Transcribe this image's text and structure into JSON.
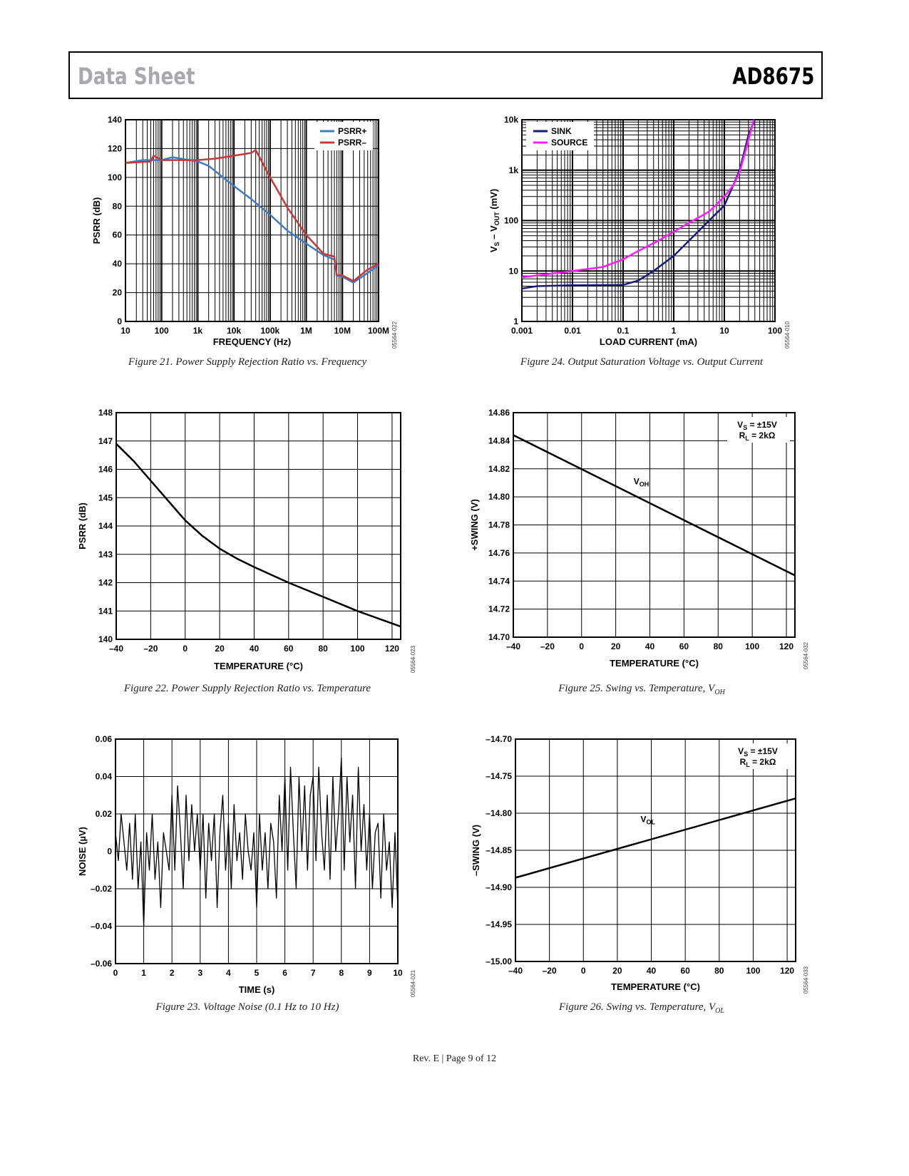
{
  "header": {
    "left": "Data Sheet",
    "right": "AD8675"
  },
  "footer": "Rev. E | Page 9 of 12",
  "captions": [
    {
      "text": "Figure 21. Power Supply Rejection Ratio vs. Frequency",
      "sub": ""
    },
    {
      "text": "Figure 24. Output Saturation Voltage vs. Output Current",
      "sub": ""
    },
    {
      "text": "Figure 22. Power Supply Rejection Ratio vs. Temperature",
      "sub": ""
    },
    {
      "text": "Figure 25. Swing vs. Temperature, V",
      "sub": "OH"
    },
    {
      "text": "Figure 23. Voltage Noise (0.1 Hz to 10 Hz)",
      "sub": ""
    },
    {
      "text": "Figure 26. Swing vs. Temperature, V",
      "sub": "OL"
    }
  ],
  "chart_data": [
    {
      "type": "line",
      "title": "Figure 21. Power Supply Rejection Ratio vs. Frequency",
      "xlabel": "FREQUENCY (Hz)",
      "ylabel": [
        {
          "t": "PSRR (dB)"
        }
      ],
      "code": "05564-022",
      "xscale": "log",
      "yscale": "linear",
      "xlim": [
        10,
        100000000
      ],
      "ylim": [
        0,
        140
      ],
      "grid": true,
      "xticks": [
        10,
        100,
        1000,
        10000,
        100000,
        1000000,
        10000000,
        100000000
      ],
      "xticklabels": [
        "10",
        "100",
        "1k",
        "10k",
        "100k",
        "1M",
        "10M",
        "100M"
      ],
      "yticks": [
        0,
        20,
        40,
        60,
        80,
        100,
        120,
        140
      ],
      "yticklabels": [
        "0",
        "20",
        "40",
        "60",
        "80",
        "100",
        "120",
        "140"
      ],
      "legend": "top-right",
      "series": [
        {
          "name": "PSRR+",
          "color": "#3e7cc4",
          "x": [
            10,
            30,
            100,
            200,
            1000,
            2000,
            5000,
            10000,
            30000,
            100000,
            300000,
            1000000,
            3000000,
            6000000,
            7000000,
            10000000,
            20000000,
            40000000,
            100000000
          ],
          "y": [
            110,
            112,
            112,
            114,
            111,
            108,
            100,
            94,
            85,
            74,
            63,
            54,
            46,
            43,
            32,
            31,
            27,
            32,
            39
          ]
        },
        {
          "name": "PSRR–",
          "color": "#c8373a",
          "x": [
            10,
            50,
            60,
            100,
            1000,
            3000,
            10000,
            30000,
            40000,
            100000,
            300000,
            1000000,
            3000000,
            6000000,
            7000000,
            10000000,
            20000000,
            50000000,
            100000000
          ],
          "y": [
            110,
            111,
            115,
            112,
            112,
            113,
            115,
            117,
            119,
            100,
            79,
            60,
            47,
            45,
            32,
            32,
            28,
            36,
            40
          ]
        }
      ]
    },
    {
      "type": "line",
      "title": "Figure 24. Output Saturation Voltage vs. Output Current",
      "xlabel": "LOAD CURRENT (mA)",
      "ylabel": [
        {
          "t": "V"
        },
        {
          "t": "S",
          "sub": true
        },
        {
          "t": " – V"
        },
        {
          "t": "OUT",
          "sub": true
        },
        {
          "t": " (mV)"
        }
      ],
      "code": "05564-010",
      "xscale": "log",
      "yscale": "log",
      "xlim": [
        0.001,
        100
      ],
      "ylim": [
        1,
        10000
      ],
      "grid": true,
      "xticks": [
        0.001,
        0.01,
        0.1,
        1,
        10,
        100
      ],
      "xticklabels": [
        "0.001",
        "0.01",
        "0.1",
        "1",
        "10",
        "100"
      ],
      "yticks": [
        1,
        10,
        100,
        1000,
        10000
      ],
      "yticklabels": [
        "1",
        "10",
        "100",
        "1k",
        "10k"
      ],
      "legend": "top-left",
      "series": [
        {
          "name": "SINK",
          "color": "#1a1a7a",
          "x": [
            0.001,
            0.002,
            0.01,
            0.1,
            0.2,
            0.4,
            1,
            2,
            5,
            10,
            15,
            20,
            30,
            40
          ],
          "y": [
            4.5,
            5,
            5.2,
            5.3,
            6.5,
            10,
            20,
            40,
            100,
            200,
            500,
            1000,
            5000,
            10000
          ]
        },
        {
          "name": "SOURCE",
          "color": "#ff1aff",
          "x": [
            0.001,
            0.01,
            0.04,
            0.1,
            0.2,
            0.5,
            1,
            2,
            5,
            10,
            15,
            20,
            30,
            38
          ],
          "y": [
            7.5,
            10,
            12,
            17,
            25,
            40,
            60,
            90,
            150,
            300,
            500,
            900,
            4000,
            10000
          ]
        }
      ]
    },
    {
      "type": "line",
      "title": "Figure 22. Power Supply Rejection Ratio vs. Temperature",
      "xlabel": "TEMPERATURE (°C)",
      "ylabel": [
        {
          "t": "PSRR (dB)"
        }
      ],
      "code": "05564-023",
      "xscale": "linear",
      "yscale": "linear",
      "xlim": [
        -40,
        125
      ],
      "ylim": [
        140,
        148
      ],
      "grid": true,
      "xticks": [
        -40,
        -20,
        0,
        20,
        40,
        60,
        80,
        100,
        120
      ],
      "xticklabels": [
        "–40",
        "–20",
        "0",
        "20",
        "40",
        "60",
        "80",
        "100",
        "120"
      ],
      "yticks": [
        140,
        141,
        142,
        143,
        144,
        145,
        146,
        147,
        148
      ],
      "yticklabels": [
        "140",
        "141",
        "142",
        "143",
        "144",
        "145",
        "146",
        "147",
        "148"
      ],
      "series": [
        {
          "name": "PSRR",
          "color": "#000000",
          "x": [
            -40,
            -30,
            -20,
            -10,
            0,
            10,
            20,
            30,
            40,
            60,
            80,
            100,
            125
          ],
          "y": [
            146.9,
            146.3,
            145.6,
            144.9,
            144.2,
            143.65,
            143.2,
            142.85,
            142.55,
            142.0,
            141.5,
            141.0,
            140.45
          ]
        }
      ]
    },
    {
      "type": "line",
      "title": "Figure 25. Swing vs. Temperature, VOH",
      "xlabel": "TEMPERATURE (°C)",
      "ylabel": [
        {
          "t": "+SWING (V)"
        }
      ],
      "code": "05564-032",
      "xscale": "linear",
      "yscale": "linear",
      "xlim": [
        -40,
        125
      ],
      "ylim": [
        14.7,
        14.86
      ],
      "grid": true,
      "xticks": [
        -40,
        -20,
        0,
        20,
        40,
        60,
        80,
        100,
        120
      ],
      "xticklabels": [
        "–40",
        "–20",
        "0",
        "20",
        "40",
        "60",
        "80",
        "100",
        "120"
      ],
      "yticks": [
        14.7,
        14.72,
        14.74,
        14.76,
        14.78,
        14.8,
        14.82,
        14.84,
        14.86
      ],
      "yticklabels": [
        "14.70",
        "14.72",
        "14.74",
        "14.76",
        "14.78",
        "14.80",
        "14.82",
        "14.84",
        "14.86"
      ],
      "annotation": [
        {
          "main": "V",
          "sub": "S",
          "rest": " = ±15V"
        },
        {
          "main": "R",
          "sub": "L",
          "rest": " = 2kΩ"
        }
      ],
      "curve_label": {
        "main": "V",
        "sub": "OH",
        "x": 35,
        "y": 14.809
      },
      "series": [
        {
          "name": "VOH",
          "color": "#000000",
          "x": [
            -40,
            125
          ],
          "y": [
            14.844,
            14.744
          ]
        }
      ]
    },
    {
      "type": "line",
      "title": "Figure 23. Voltage Noise (0.1 Hz to 10 Hz)",
      "xlabel": "TIME (s)",
      "ylabel": [
        {
          "t": "NOISE (µV)"
        }
      ],
      "code": "05564-021",
      "xscale": "linear",
      "yscale": "linear",
      "xlim": [
        0,
        10
      ],
      "ylim": [
        -0.06,
        0.06
      ],
      "grid": true,
      "xticks": [
        0,
        1,
        2,
        3,
        4,
        5,
        6,
        7,
        8,
        9,
        10
      ],
      "xticklabels": [
        "0",
        "1",
        "2",
        "3",
        "4",
        "5",
        "6",
        "7",
        "8",
        "9",
        "10"
      ],
      "yticks": [
        -0.06,
        -0.04,
        -0.02,
        0,
        0.02,
        0.04,
        0.06
      ],
      "yticklabels": [
        "–0.06",
        "–0.04",
        "–0.02",
        "0",
        "0.02",
        "0.04",
        "0.06"
      ],
      "series": [
        {
          "name": "Noise",
          "color": "#000000",
          "x_step": 0.1,
          "y": [
            0.01,
            -0.005,
            0.02,
            0.005,
            -0.01,
            0.015,
            -0.015,
            0.02,
            -0.02,
            0.005,
            -0.04,
            0.01,
            -0.01,
            0.02,
            -0.015,
            0.005,
            -0.03,
            0.01,
            0.0,
            -0.01,
            0.03,
            -0.01,
            0.035,
            0.01,
            -0.02,
            0.03,
            -0.005,
            0.025,
            0.0,
            0.02,
            -0.01,
            0.02,
            -0.025,
            0.015,
            -0.005,
            0.02,
            -0.03,
            0.01,
            0.03,
            -0.01,
            0.015,
            -0.02,
            0.025,
            -0.005,
            0.01,
            -0.015,
            0.02,
            0.0,
            -0.01,
            0.01,
            -0.03,
            0.02,
            -0.01,
            0.01,
            -0.02,
            0.015,
            0.005,
            -0.025,
            0.03,
            0.0,
            0.04,
            -0.01,
            0.045,
            0.01,
            -0.02,
            0.04,
            0.0,
            0.035,
            -0.01,
            0.03,
            0.04,
            -0.005,
            0.045,
            0.01,
            -0.01,
            0.03,
            -0.015,
            0.04,
            0.0,
            0.02,
            0.05,
            -0.01,
            0.04,
            0.005,
            0.03,
            -0.02,
            0.045,
            0.0,
            0.025,
            -0.01,
            0.02,
            -0.02,
            0.01,
            0.015,
            -0.025,
            0.02,
            -0.01,
            0.005,
            -0.03,
            0.01,
            -0.03
          ]
        }
      ]
    },
    {
      "type": "line",
      "title": "Figure 26. Swing vs. Temperature, VOL",
      "xlabel": "TEMPERATURE (°C)",
      "ylabel": [
        {
          "t": "–SWING (V)"
        }
      ],
      "code": "05564-033",
      "xscale": "linear",
      "yscale": "linear",
      "xlim": [
        -40,
        125
      ],
      "ylim": [
        -15.0,
        -14.7
      ],
      "grid": true,
      "xticks": [
        -40,
        -20,
        0,
        20,
        40,
        60,
        80,
        100,
        120
      ],
      "xticklabels": [
        "–40",
        "–20",
        "0",
        "20",
        "40",
        "60",
        "80",
        "100",
        "120"
      ],
      "yticks": [
        -15.0,
        -14.95,
        -14.9,
        -14.85,
        -14.8,
        -14.75,
        -14.7
      ],
      "yticklabels": [
        "–15.00",
        "–14.95",
        "–14.90",
        "–14.85",
        "–14.80",
        "–14.75",
        "–14.70"
      ],
      "annotation": [
        {
          "main": "V",
          "sub": "S",
          "rest": " = ±15V"
        },
        {
          "main": "R",
          "sub": "L",
          "rest": " = 2kΩ"
        }
      ],
      "curve_label": {
        "main": "V",
        "sub": "OL",
        "x": 38,
        "y": -14.812
      },
      "series": [
        {
          "name": "VOL",
          "color": "#000000",
          "x": [
            -40,
            125
          ],
          "y": [
            -14.887,
            -14.78
          ]
        }
      ]
    }
  ]
}
